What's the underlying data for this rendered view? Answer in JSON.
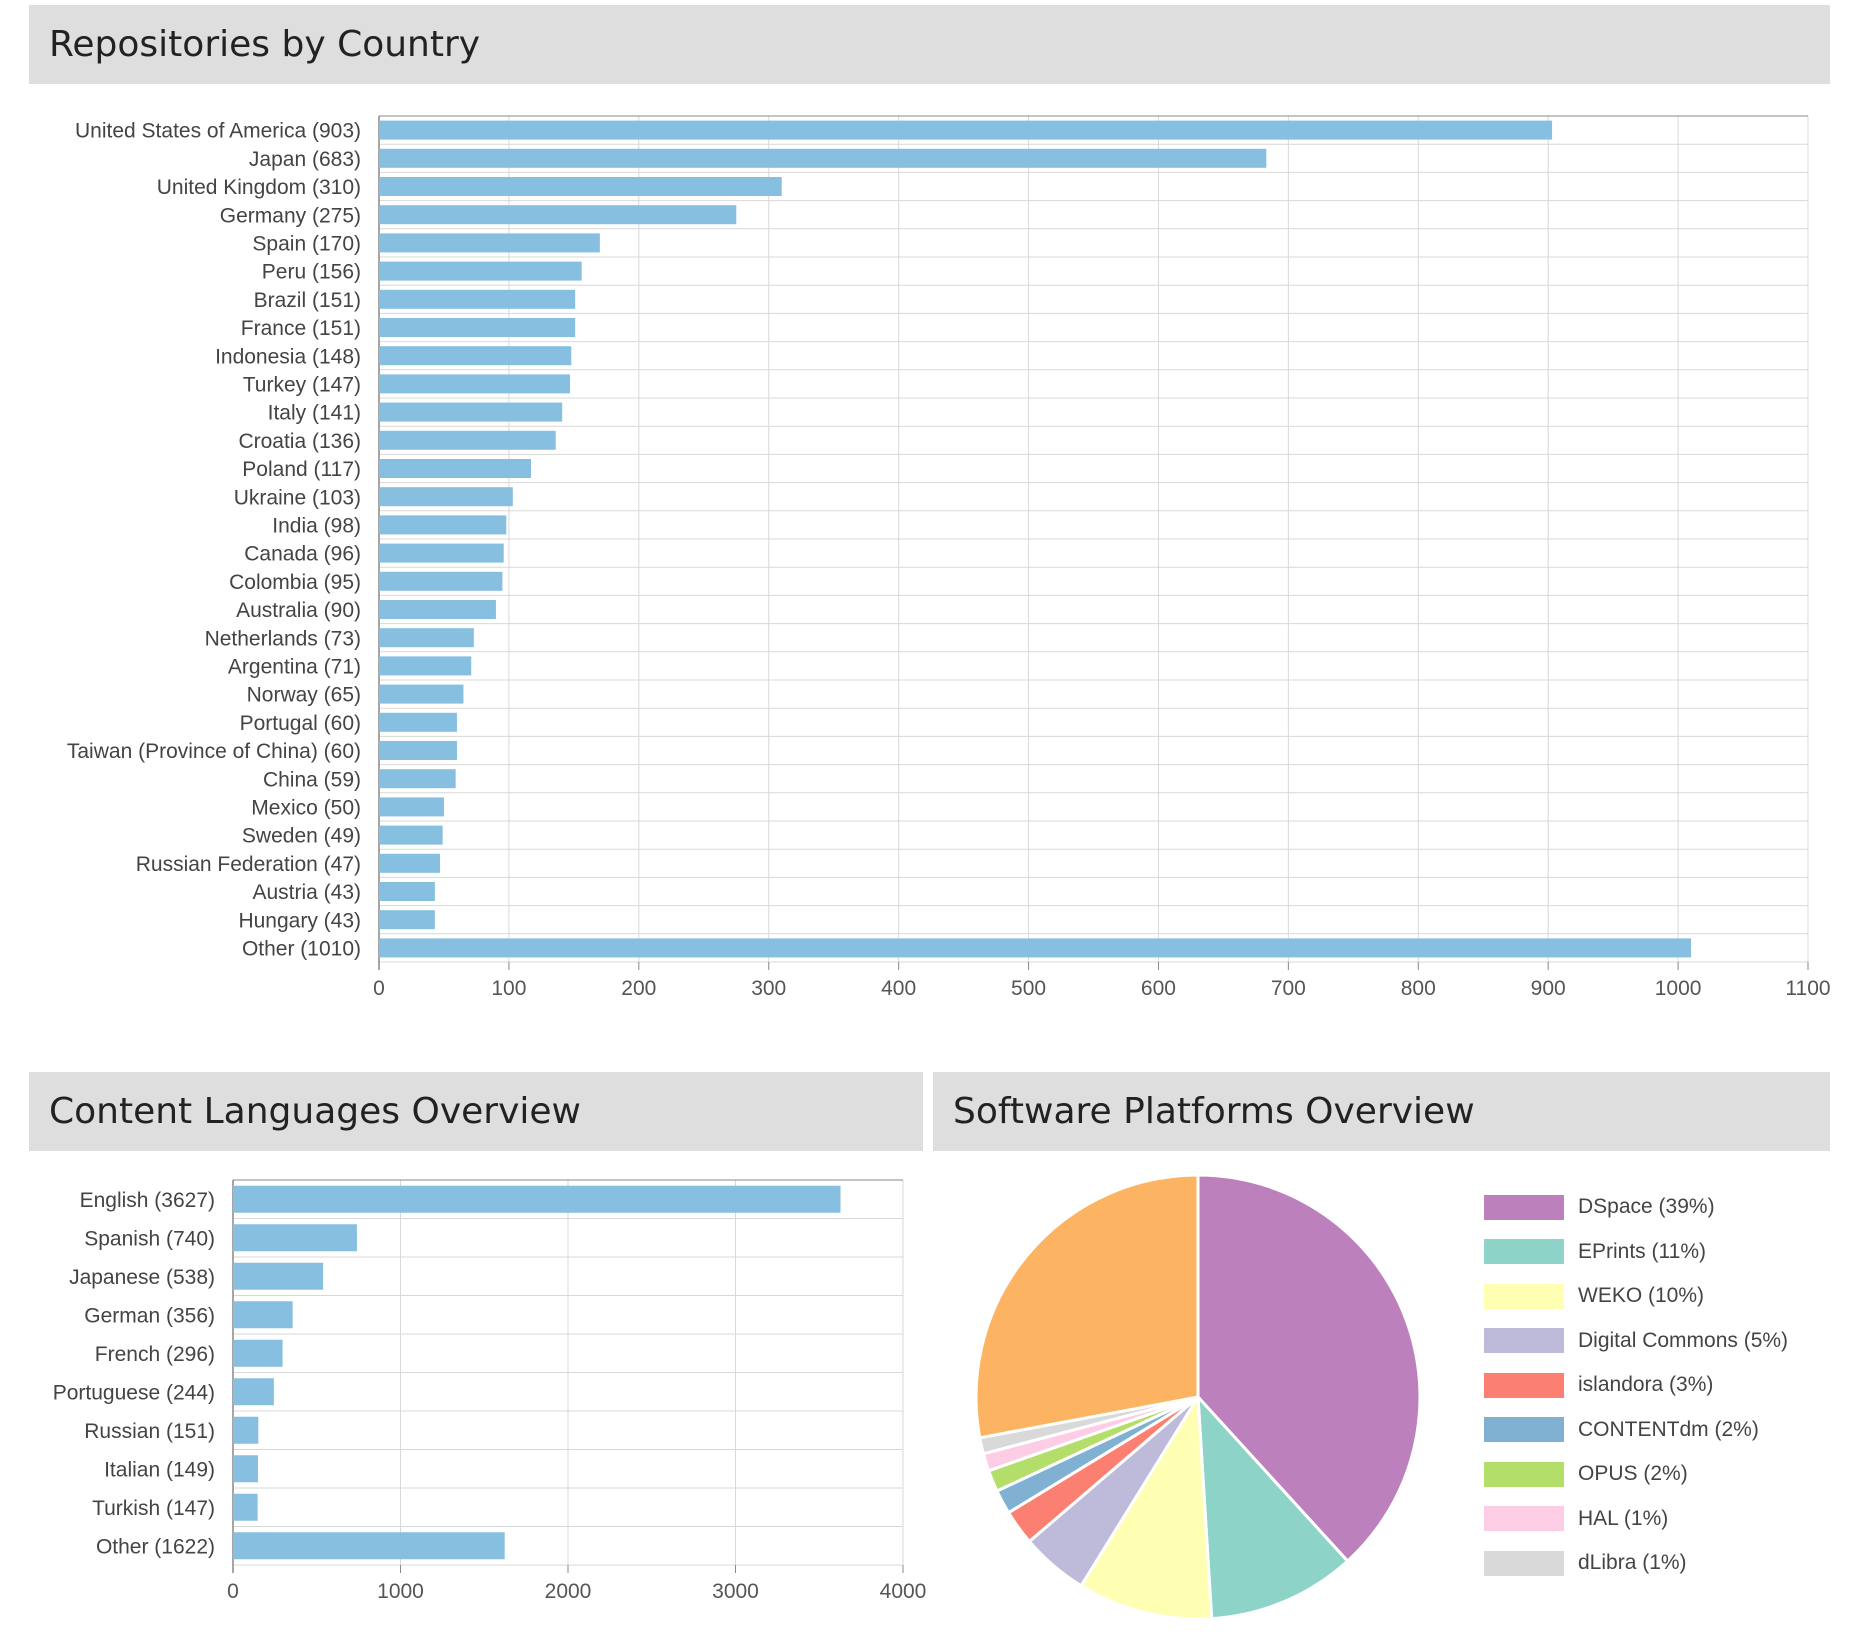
{
  "panels": {
    "country_title": "Repositories by Country",
    "language_title": "Content Languages Overview",
    "software_title": "Software Platforms Overview"
  },
  "colors": {
    "bar": "#86bfe0",
    "grid": "#d8d8d8",
    "axis": "#888888",
    "header_bg": "#dedede"
  },
  "chart_data": [
    {
      "type": "bar",
      "orientation": "horizontal",
      "categories": [
        "United States of America (903)",
        "Japan (683)",
        "United Kingdom (310)",
        "Germany (275)",
        "Spain (170)",
        "Peru (156)",
        "Brazil (151)",
        "France (151)",
        "Indonesia (148)",
        "Turkey (147)",
        "Italy (141)",
        "Croatia (136)",
        "Poland (117)",
        "Ukraine (103)",
        "India (98)",
        "Canada (96)",
        "Colombia (95)",
        "Australia (90)",
        "Netherlands (73)",
        "Argentina (71)",
        "Norway (65)",
        "Portugal (60)",
        "Taiwan (Province of China) (60)",
        "China (59)",
        "Mexico (50)",
        "Sweden (49)",
        "Russian Federation (47)",
        "Austria (43)",
        "Hungary (43)",
        "Other (1010)"
      ],
      "values": [
        903,
        683,
        310,
        275,
        170,
        156,
        151,
        151,
        148,
        147,
        141,
        136,
        117,
        103,
        98,
        96,
        95,
        90,
        73,
        71,
        65,
        60,
        60,
        59,
        50,
        49,
        47,
        43,
        43,
        1010
      ],
      "xlim": [
        0,
        1100
      ],
      "xticks": [
        0,
        100,
        200,
        300,
        400,
        500,
        600,
        700,
        800,
        900,
        1000,
        1100
      ],
      "grid": true
    },
    {
      "type": "bar",
      "orientation": "horizontal",
      "categories": [
        "English (3627)",
        "Spanish (740)",
        "Japanese (538)",
        "German (356)",
        "French (296)",
        "Portuguese (244)",
        "Russian (151)",
        "Italian (149)",
        "Turkish (147)",
        "Other (1622)"
      ],
      "values": [
        3627,
        740,
        538,
        356,
        296,
        244,
        151,
        149,
        147,
        1622
      ],
      "xlim": [
        0,
        4000
      ],
      "xticks": [
        0,
        1000,
        2000,
        3000,
        4000
      ],
      "grid": true
    },
    {
      "type": "pie",
      "legend": "right",
      "slices": [
        {
          "label": "DSpace (39%)",
          "value": 39,
          "color": "#bc80bd",
          "in_legend": true
        },
        {
          "label": "EPrints (11%)",
          "value": 11,
          "color": "#8dd3c7",
          "in_legend": true
        },
        {
          "label": "WEKO (10%)",
          "value": 10,
          "color": "#ffffb3",
          "in_legend": true
        },
        {
          "label": "Digital Commons (5%)",
          "value": 5,
          "color": "#bebada",
          "in_legend": true
        },
        {
          "label": "islandora (3%)",
          "value": 2.6,
          "color": "#fb8072",
          "in_legend": true
        },
        {
          "label": "CONTENTdm (2%)",
          "value": 1.8,
          "color": "#80b1d3",
          "in_legend": true
        },
        {
          "label": "OPUS (2%)",
          "value": 1.6,
          "color": "#b3de69",
          "in_legend": true
        },
        {
          "label": "HAL (1%)",
          "value": 1.3,
          "color": "#fccde5",
          "in_legend": true
        },
        {
          "label": "dLibra (1%)",
          "value": 1.2,
          "color": "#d9d9d9",
          "in_legend": true
        },
        {
          "label": "",
          "value": 28.5,
          "color": "#fdb462",
          "in_legend": false
        }
      ]
    }
  ]
}
